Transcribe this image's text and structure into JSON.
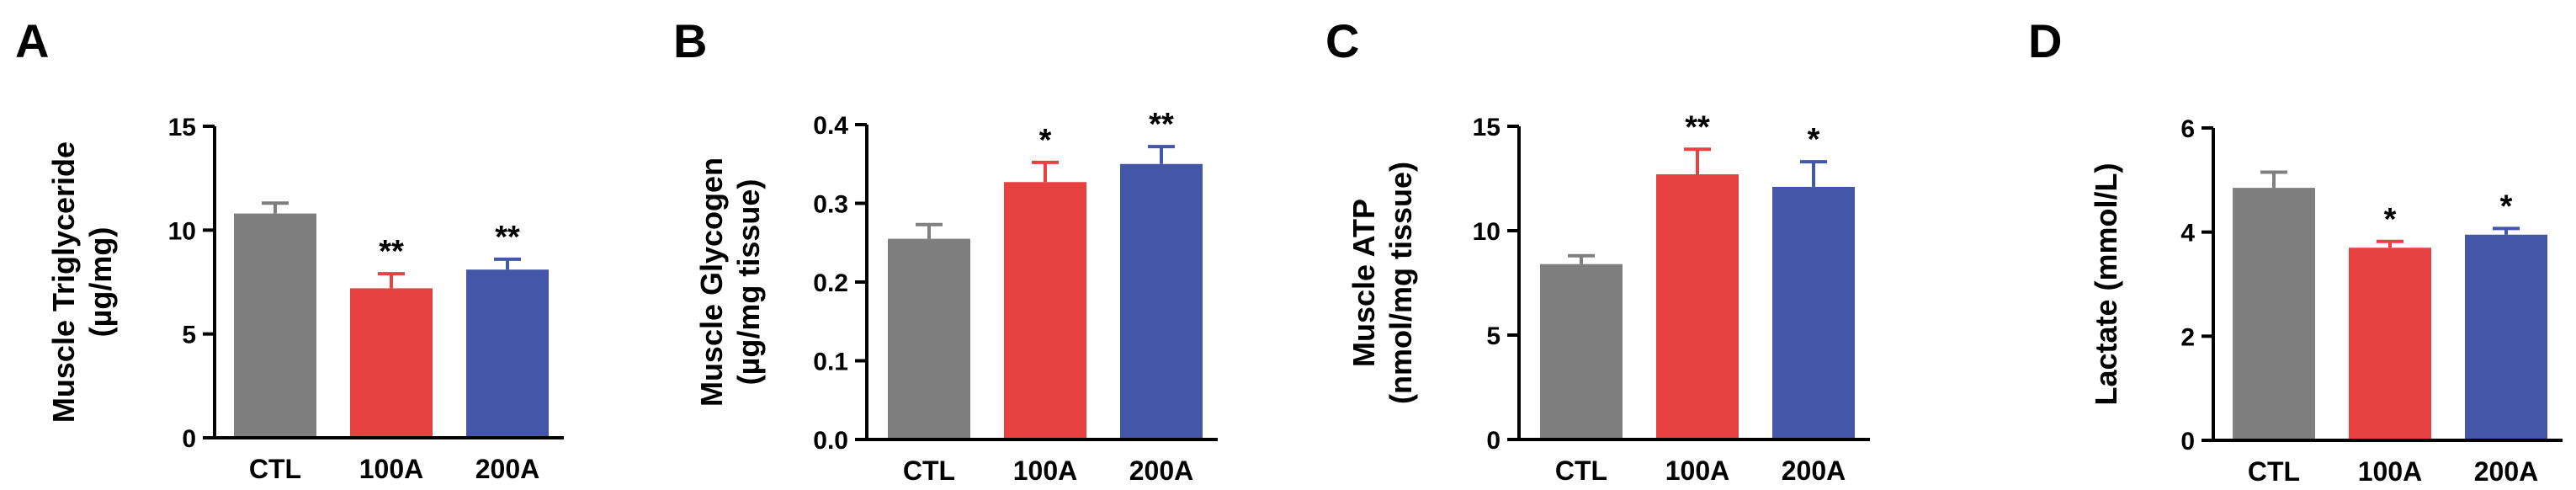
{
  "figure": {
    "colors": {
      "CTL": "#7f7f7f",
      "100A": "#e84142",
      "200A": "#4456a8"
    },
    "error_bar_colors": {
      "CTL": "#7f7f7f",
      "100A": "#e84142",
      "200A": "#4456a8"
    }
  },
  "chart_data": [
    {
      "panel": "A",
      "type": "bar",
      "ylabel_lines": [
        "Muscle Triglyceride",
        "(µg/mg)"
      ],
      "categories": [
        "CTL",
        "100A",
        "200A"
      ],
      "values": [
        10.8,
        7.2,
        8.1
      ],
      "errors": [
        0.5,
        0.7,
        0.5
      ],
      "significance": [
        "",
        "**",
        "**"
      ],
      "ylim": [
        0,
        15
      ],
      "yticks": [
        0,
        5,
        10,
        15
      ],
      "ytick_labels": [
        "0",
        "5",
        "10",
        "15"
      ]
    },
    {
      "panel": "B",
      "type": "bar",
      "ylabel_lines": [
        "Muscle Glycogen",
        "(µg/mg tissue)"
      ],
      "categories": [
        "CTL",
        "100A",
        "200A"
      ],
      "values": [
        0.255,
        0.327,
        0.35
      ],
      "errors": [
        0.018,
        0.025,
        0.022
      ],
      "significance": [
        "",
        "*",
        "**"
      ],
      "ylim": [
        0,
        0.4
      ],
      "yticks": [
        0,
        0.1,
        0.2,
        0.3,
        0.4
      ],
      "ytick_labels": [
        "0.0",
        "0.1",
        "0.2",
        "0.3",
        "0.4"
      ]
    },
    {
      "panel": "C",
      "type": "bar",
      "ylabel_lines": [
        "Muscle ATP",
        "(nmol/mg tissue)"
      ],
      "categories": [
        "CTL",
        "100A",
        "200A"
      ],
      "values": [
        8.4,
        12.7,
        12.1
      ],
      "errors": [
        0.4,
        1.2,
        1.2
      ],
      "significance": [
        "",
        "**",
        "*"
      ],
      "ylim": [
        0,
        15
      ],
      "yticks": [
        0,
        5,
        10,
        15
      ],
      "ytick_labels": [
        "0",
        "5",
        "10",
        "15"
      ]
    },
    {
      "panel": "D",
      "type": "bar",
      "ylabel_lines": [
        "Lactate (mmol/L)"
      ],
      "categories": [
        "CTL",
        "100A",
        "200A"
      ],
      "values": [
        4.85,
        3.7,
        3.95
      ],
      "errors": [
        0.3,
        0.12,
        0.12
      ],
      "significance": [
        "",
        "*",
        "*"
      ],
      "ylim": [
        0,
        6
      ],
      "yticks": [
        0,
        2,
        4,
        6
      ],
      "ytick_labels": [
        "0",
        "2",
        "4",
        "6"
      ]
    }
  ]
}
